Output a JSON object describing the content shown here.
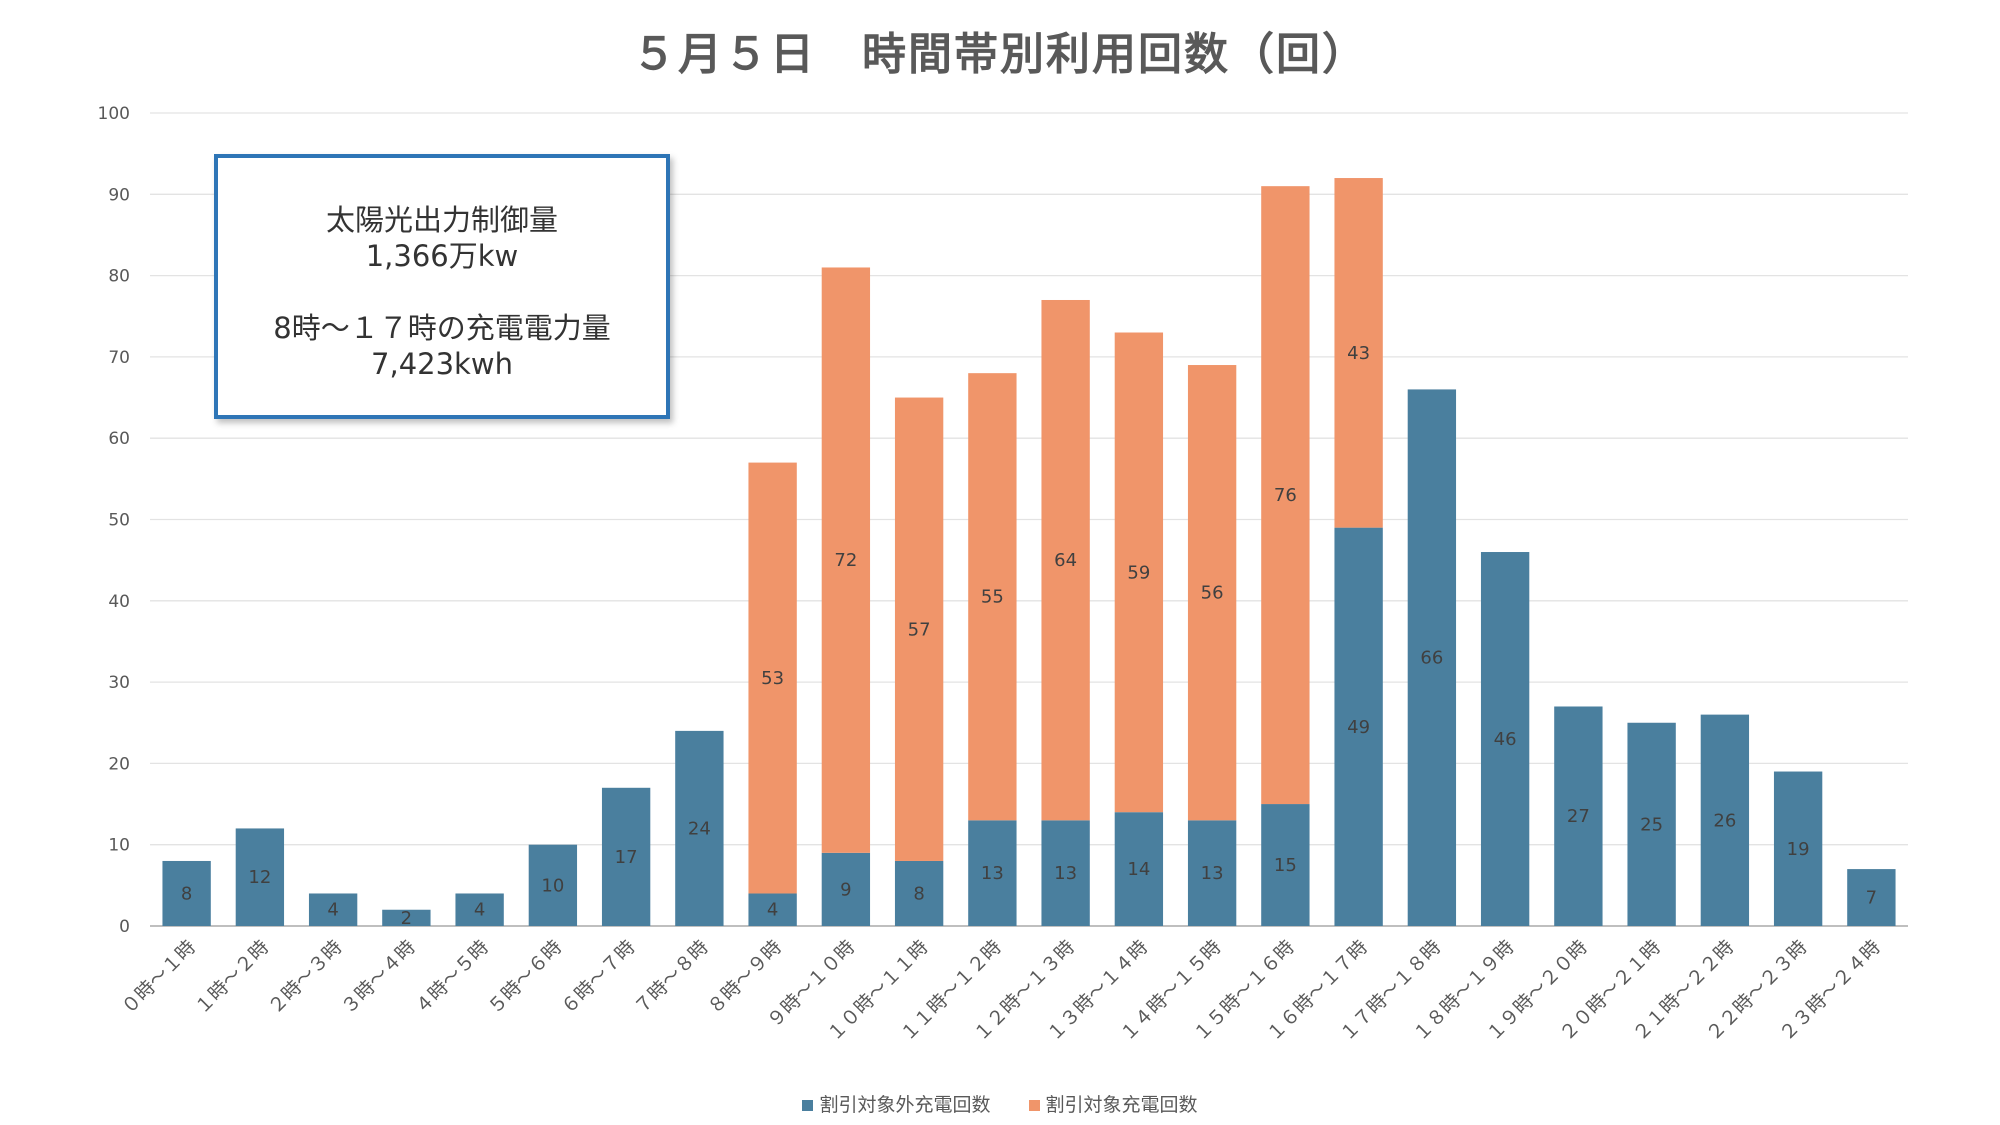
{
  "chart_data": {
    "type": "bar",
    "stacked": true,
    "title": "５月５日　時間帯別利用回数（回）",
    "ylim": [
      0,
      100
    ],
    "yticks": [
      0,
      10,
      20,
      30,
      40,
      50,
      60,
      70,
      80,
      90,
      100
    ],
    "grid": true,
    "legend_position": "bottom",
    "categories": [
      "０時～１時",
      "１時～２時",
      "２時～３時",
      "３時～４時",
      "４時～５時",
      "５時～６時",
      "６時～７時",
      "７時～８時",
      "８時～９時",
      "９時～１０時",
      "１０時～１１時",
      "１１時～１２時",
      "１２時～１３時",
      "１３時～１４時",
      "１４時～１５時",
      "１５時～１６時",
      "１６時～１７時",
      "１７時～１８時",
      "１８時～１９時",
      "１９時～２０時",
      "２０時～２１時",
      "２１時～２２時",
      "２２時～２３時",
      "２３時～２４時"
    ],
    "series": [
      {
        "name": "割引対象外充電回数",
        "color": "#4A7F9E",
        "values": [
          8,
          12,
          4,
          2,
          4,
          10,
          17,
          24,
          4,
          9,
          8,
          13,
          13,
          14,
          13,
          15,
          49,
          66,
          46,
          27,
          25,
          26,
          19,
          7
        ]
      },
      {
        "name": "割引対象充電回数",
        "color": "#F0956A",
        "values": [
          0,
          0,
          0,
          0,
          0,
          0,
          0,
          0,
          53,
          72,
          57,
          55,
          64,
          59,
          56,
          76,
          43,
          0,
          0,
          0,
          0,
          0,
          0,
          0
        ]
      }
    ]
  },
  "annotation": {
    "line1": "太陽光出力制御量",
    "line2": "1,366万kw",
    "line3": "8時～１７時の充電電力量",
    "line4": "7,423kwh"
  }
}
